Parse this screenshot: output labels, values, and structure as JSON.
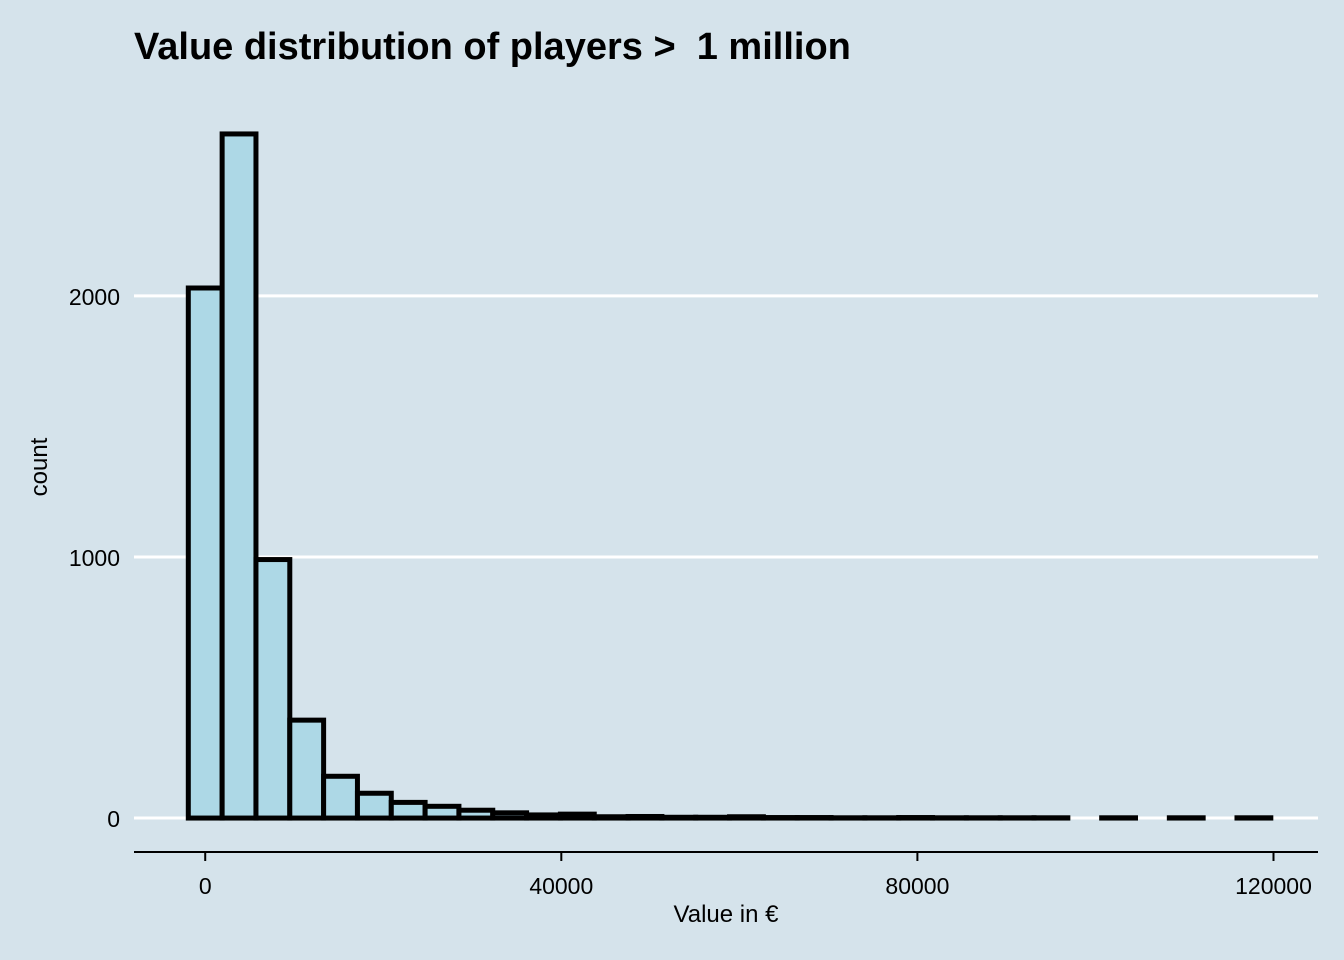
{
  "chart_data": {
    "type": "bar",
    "title": "Value distribution of players >  1 million",
    "xlabel": "Value in €",
    "ylabel": "count",
    "bin_width": 3800,
    "bin_centers": [
      0,
      3800,
      7600,
      11400,
      15200,
      19000,
      22800,
      26600,
      30400,
      34200,
      38000,
      41800,
      45600,
      49400,
      53200,
      57000,
      60800,
      64600,
      68400,
      72200,
      76000,
      79800,
      83600,
      87400,
      91200,
      95000,
      98800,
      102600,
      106400,
      110200,
      114000,
      117800
    ],
    "values": [
      2030,
      2620,
      990,
      375,
      160,
      95,
      60,
      45,
      30,
      20,
      12,
      15,
      5,
      6,
      3,
      3,
      5,
      2,
      2,
      1,
      1,
      2,
      1,
      1,
      1,
      1,
      0,
      1,
      0,
      1,
      0,
      1
    ],
    "xlim": [
      -8000,
      125000
    ],
    "ylim": [
      -130,
      2750
    ],
    "x_ticks": [
      "0",
      "40000",
      "80000",
      "120000"
    ],
    "y_ticks": [
      "0",
      "1000",
      "2000"
    ],
    "grid": "horizontal",
    "colors": {
      "bar_fill": "#add8e6",
      "bar_outline": "#000000",
      "grid": "#ffffff",
      "background": "#d5e3eb"
    }
  }
}
